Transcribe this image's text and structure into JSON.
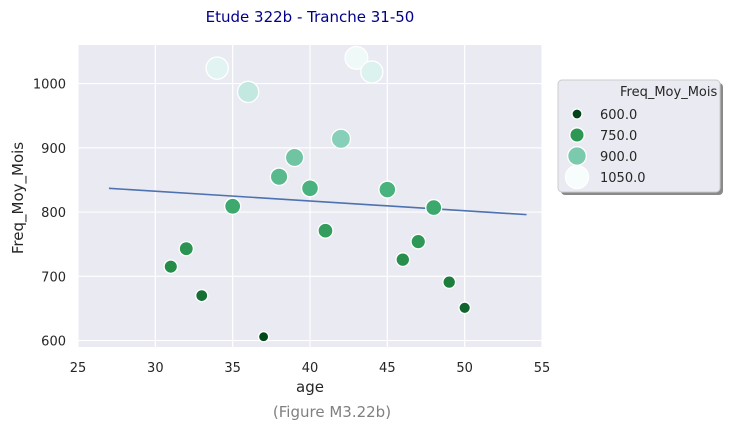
{
  "chart_data": {
    "type": "scatter",
    "title": "Etude 322b - Tranche 31-50",
    "xlabel": "age",
    "ylabel": "Freq_Moy_Mois",
    "caption": "(Figure M3.22b)",
    "xlim": [
      25,
      55
    ],
    "ylim": [
      590,
      1060
    ],
    "xticks": [
      25,
      30,
      35,
      40,
      45,
      50,
      55
    ],
    "yticks": [
      600,
      700,
      800,
      900,
      1000
    ],
    "grid": true,
    "legend": {
      "title": "Freq_Moy_Mois",
      "placement": "right",
      "entries": [
        {
          "label": "600.0",
          "value": 600
        },
        {
          "label": "750.0",
          "value": 750
        },
        {
          "label": "900.0",
          "value": 900
        },
        {
          "label": "1050.0",
          "value": 1050
        }
      ]
    },
    "colors": {
      "background": "#eaeaf2",
      "grid": "#ffffff",
      "trend": "#4c72b0",
      "hue_low": "#00441b",
      "hue_high": "#f7fcfd"
    },
    "points": [
      {
        "x": 31,
        "y": 715
      },
      {
        "x": 32,
        "y": 743
      },
      {
        "x": 33,
        "y": 670
      },
      {
        "x": 34,
        "y": 1024
      },
      {
        "x": 35,
        "y": 809
      },
      {
        "x": 36,
        "y": 987
      },
      {
        "x": 37,
        "y": 606
      },
      {
        "x": 38,
        "y": 855
      },
      {
        "x": 39,
        "y": 885
      },
      {
        "x": 40,
        "y": 837
      },
      {
        "x": 41,
        "y": 771
      },
      {
        "x": 42,
        "y": 914
      },
      {
        "x": 43,
        "y": 1040
      },
      {
        "x": 44,
        "y": 1018
      },
      {
        "x": 45,
        "y": 835
      },
      {
        "x": 46,
        "y": 726
      },
      {
        "x": 47,
        "y": 754
      },
      {
        "x": 48,
        "y": 807
      },
      {
        "x": 49,
        "y": 691
      },
      {
        "x": 50,
        "y": 651
      }
    ],
    "trend_line": {
      "x": [
        27,
        54
      ],
      "y": [
        837,
        796
      ]
    }
  }
}
